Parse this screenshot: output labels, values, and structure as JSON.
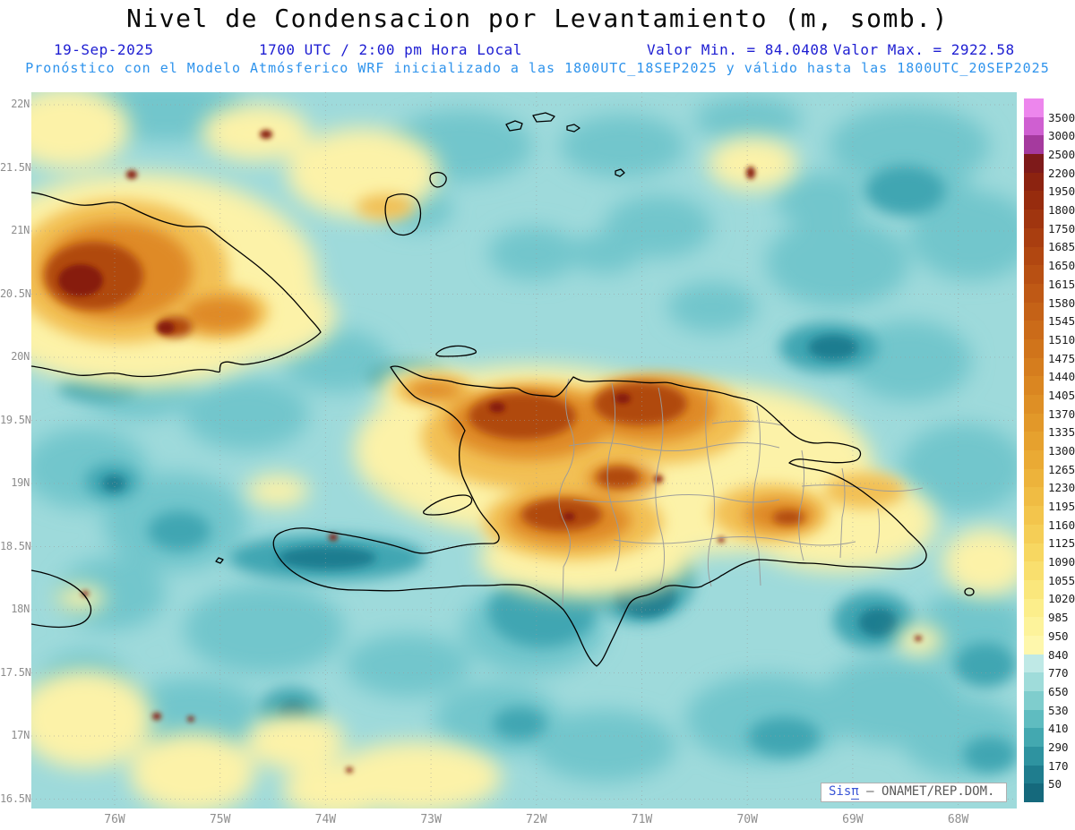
{
  "title": "Nivel de Condensacion por Levantamiento (m, somb.)",
  "header": {
    "date": "19-Sep-2025",
    "time": "1700 UTC / 2:00 pm Hora Local",
    "min_label": "Valor Min. = 84.0408",
    "max_label": "Valor Max. = 2922.58",
    "forecast_line": "Pronóstico con el Modelo Atmósferico WRF inicializado a las 1800UTC_18SEP2025 y válido hasta las  1800UTC_20SEP2025"
  },
  "map": {
    "y_axis_labels": [
      "22N",
      "21.5N",
      "21N",
      "20.5N",
      "20N",
      "19.5N",
      "19N",
      "18.5N",
      "18N",
      "17.5N",
      "17N",
      "16.5N"
    ],
    "x_axis_labels": [
      "76W",
      "75W",
      "74W",
      "73W",
      "72W",
      "71W",
      "70W",
      "69W",
      "68W"
    ]
  },
  "colorbar": {
    "labels": [
      "3500",
      "3000",
      "2500",
      "2200",
      "1950",
      "1800",
      "1750",
      "1685",
      "1650",
      "1615",
      "1580",
      "1545",
      "1510",
      "1475",
      "1440",
      "1405",
      "1370",
      "1335",
      "1300",
      "1265",
      "1230",
      "1195",
      "1160",
      "1125",
      "1090",
      "1055",
      "1020",
      "985",
      "950",
      "840",
      "770",
      "650",
      "530",
      "410",
      "290",
      "170",
      "50"
    ],
    "colors": [
      "#ed86ed",
      "#cf5fd1",
      "#a53a9e",
      "#7e1a1a",
      "#8c2310",
      "#972c0e",
      "#a0350f",
      "#a93e10",
      "#b14711",
      "#b85013",
      "#bf5915",
      "#c56217",
      "#cb6b19",
      "#d0741b",
      "#d57d1e",
      "#da8621",
      "#de8f25",
      "#e29829",
      "#e6a12e",
      "#eaaa34",
      "#edb33b",
      "#f0bc43",
      "#f3c54c",
      "#f5ce56",
      "#f7d761",
      "#f9df6e",
      "#fae77c",
      "#fcee8b",
      "#fdf39b",
      "#fef7ac",
      "#bfe9e6",
      "#9fdcda",
      "#7fcdcd",
      "#5fbcc0",
      "#43a8b0",
      "#2e93a0",
      "#1f7d8e",
      "#15697c"
    ]
  },
  "watermark": {
    "brand": "Sis",
    "pi": "π",
    "rest": "– ONAMET/REP.DOM."
  },
  "chart_data": {
    "type": "heatmap",
    "title": "Nivel de Condensacion por Levantamiento (m, somb.)",
    "units": "m",
    "value_min": 84.0408,
    "value_max": 2922.58,
    "valid_date": "19-Sep-2025",
    "valid_time": "1700 UTC / 2:00 pm Hora Local",
    "model": "WRF inicializado a las 1800UTC_18SEP2025, válido hasta 1800UTC_20SEP2025",
    "x_axis_deg_west": [
      76,
      75,
      74,
      73,
      72,
      71,
      70,
      69,
      68
    ],
    "y_axis_deg_north": [
      16.5,
      17,
      17.5,
      18,
      18.5,
      19,
      19.5,
      20,
      20.5,
      21,
      21.5,
      22
    ],
    "levels": [
      50,
      170,
      290,
      410,
      530,
      650,
      770,
      840,
      950,
      985,
      1020,
      1055,
      1090,
      1125,
      1160,
      1195,
      1230,
      1265,
      1300,
      1335,
      1370,
      1405,
      1440,
      1475,
      1510,
      1545,
      1580,
      1615,
      1650,
      1685,
      1750,
      1800,
      1950,
      2200,
      2500,
      3000,
      3500
    ],
    "legend_position": "right"
  }
}
